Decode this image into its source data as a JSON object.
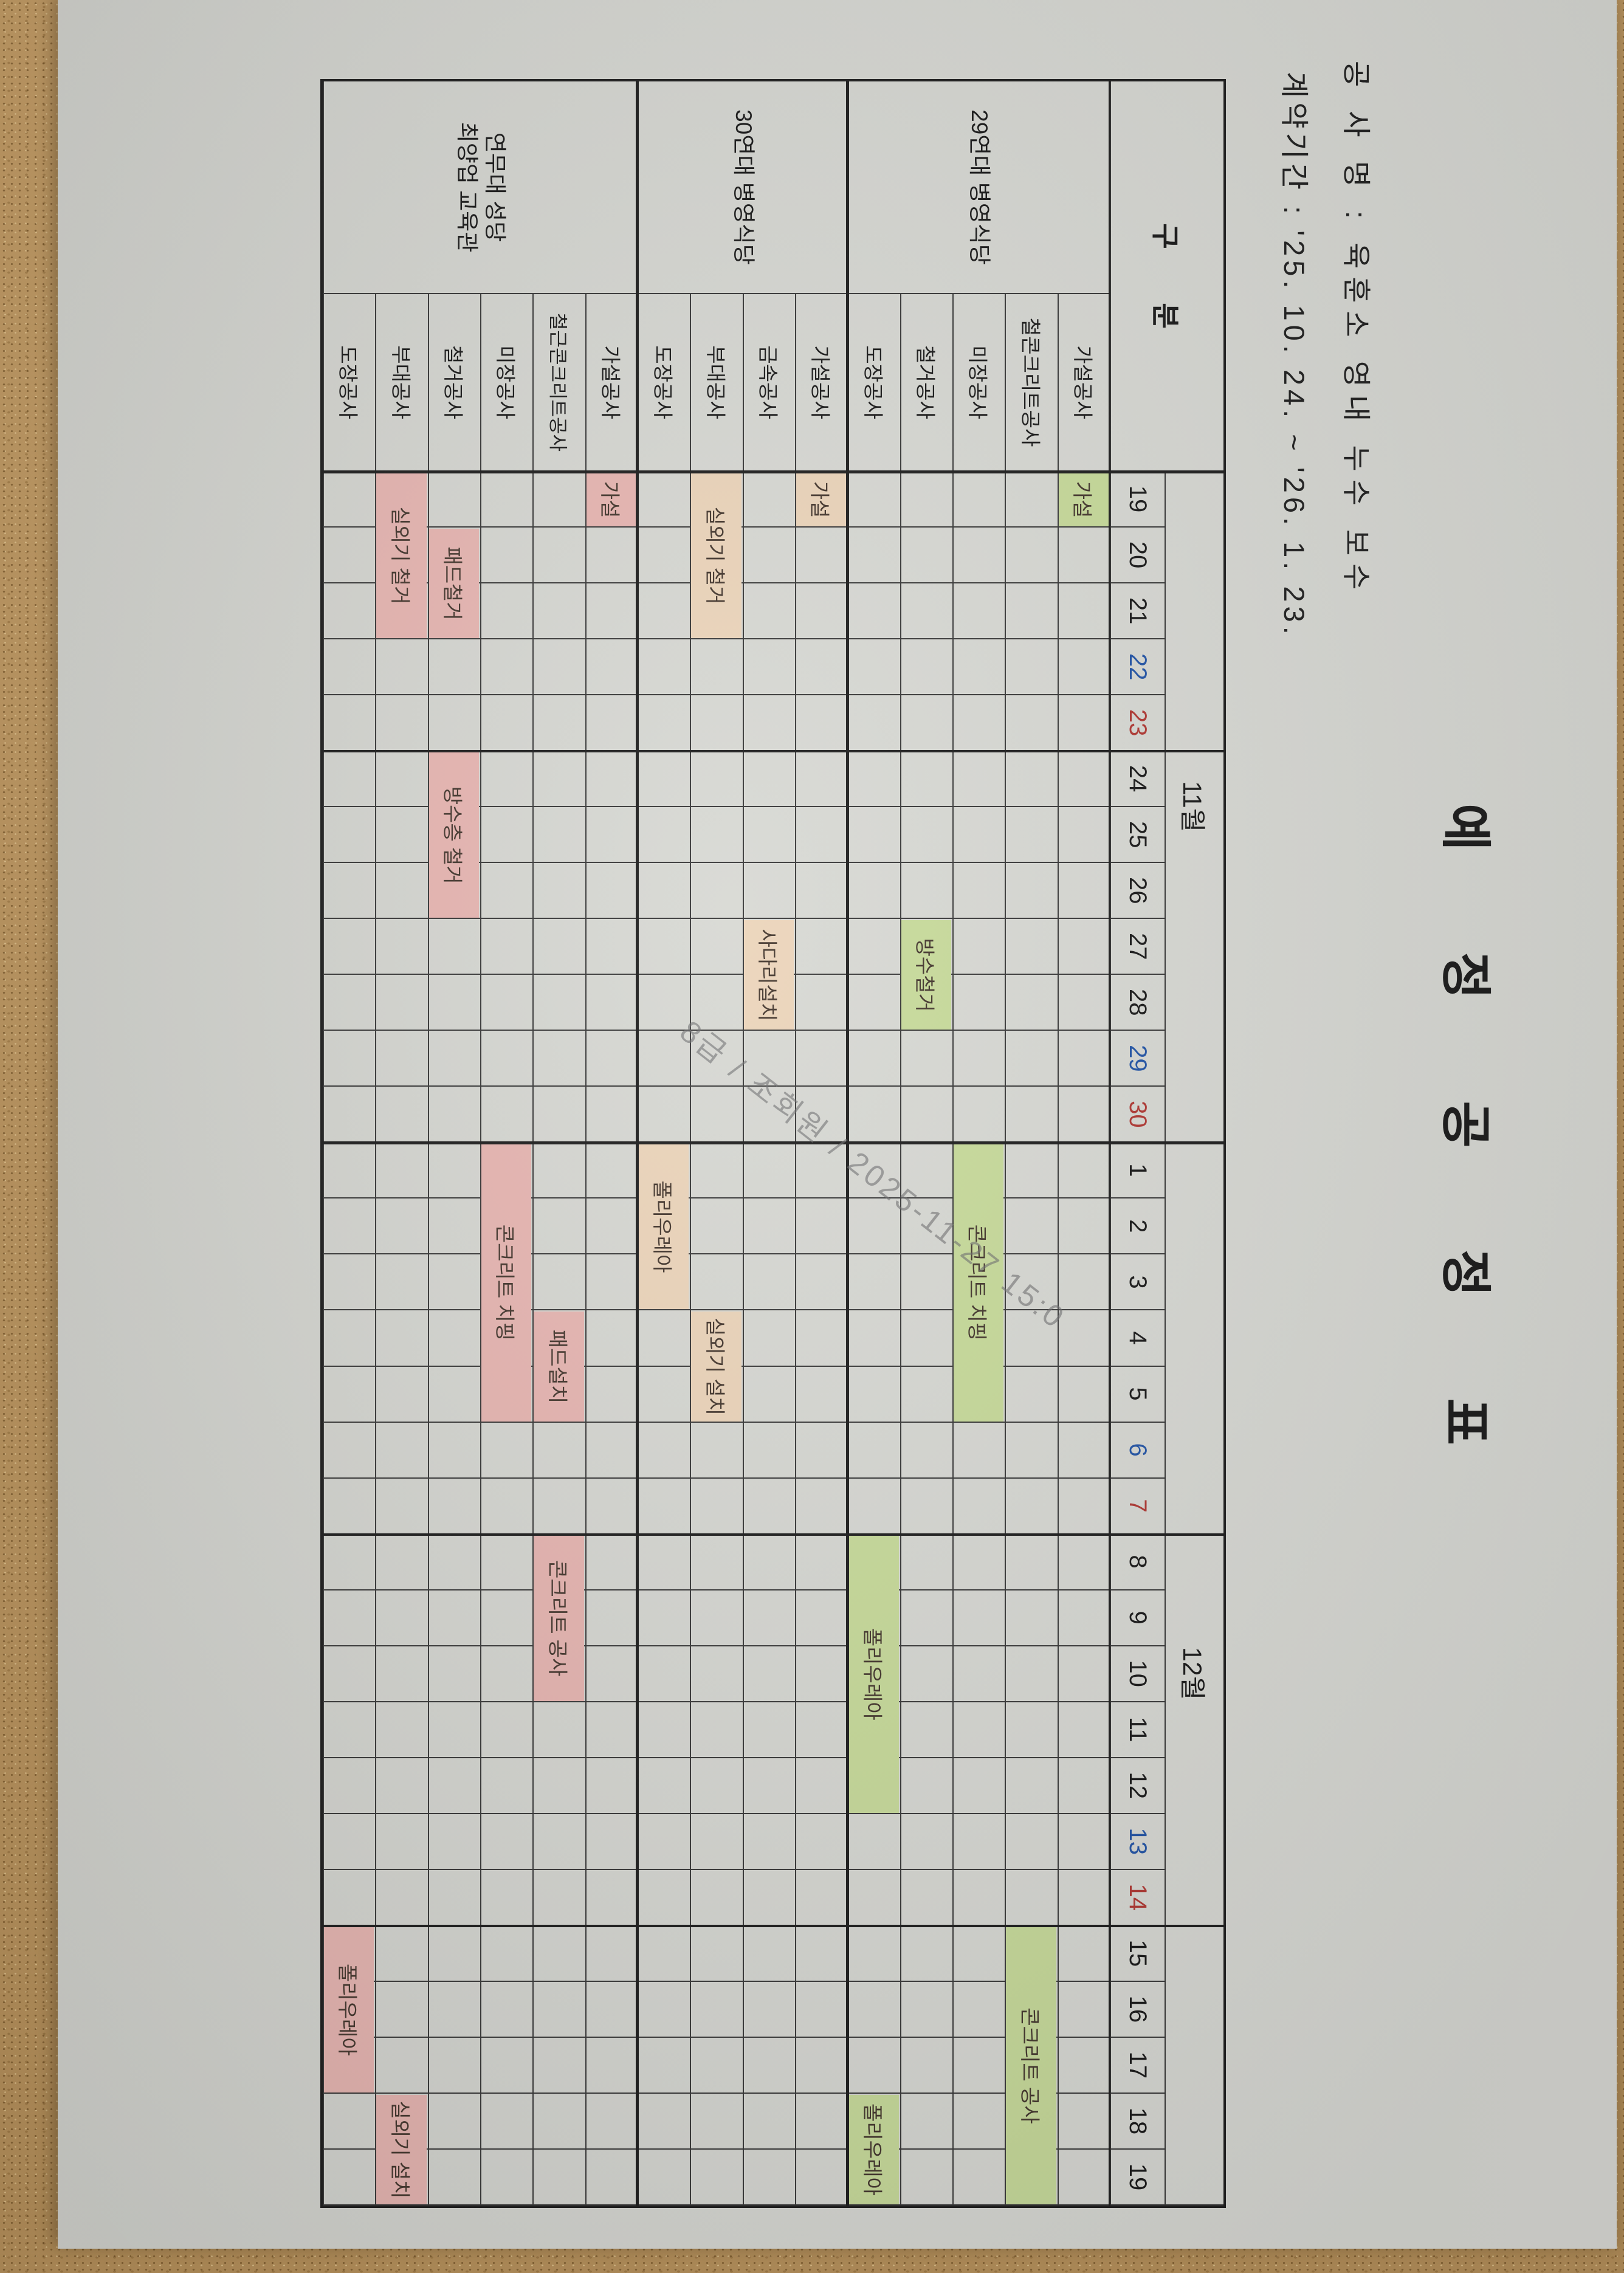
{
  "title": "예 정 공 정 표",
  "header": {
    "project_name_line": "공 사 명 : 육훈소 영내 누수 보수",
    "contract_period_line": "계약기간 : '25. 10. 24. ~ '26. 1. 23."
  },
  "watermark": {
    "text": "8급 / 조회원 / 2025-11-27 15:0"
  },
  "colors": {
    "paper": "#d8d9d4",
    "desk": "#bd9760"
  },
  "chart_data": {
    "type": "gantt-table",
    "corner_label": "구 분",
    "date_range": "2025-11-19 ~ 2025-12-19",
    "colors": {
      "green": "#c9dc9c",
      "tan": "#ecd5bb",
      "pink": "#e7b6b2",
      "saturday": "#2456a8",
      "sunday": "#b23a35",
      "bar_text": "#45382f"
    },
    "months": [
      {
        "label": "11월",
        "days": [
          19,
          20,
          21,
          22,
          23,
          24,
          25,
          26,
          27,
          28,
          29,
          30
        ],
        "saturdays": [
          22,
          29
        ],
        "sundays": [
          23,
          30
        ]
      },
      {
        "label": "12월",
        "days": [
          1,
          2,
          3,
          4,
          5,
          6,
          7,
          8,
          9,
          10,
          11,
          12,
          13,
          14,
          15,
          16,
          17,
          18,
          19
        ],
        "saturdays": [
          6,
          13
        ],
        "sundays": [
          7,
          14
        ]
      }
    ],
    "week_thick_after": [
      {
        "month": 11,
        "day": 23
      },
      {
        "month": 11,
        "day": 30
      },
      {
        "month": 12,
        "day": 7
      },
      {
        "month": 12,
        "day": 14
      }
    ],
    "sections": [
      {
        "name_lines": [
          "29연대 병영식당"
        ],
        "color": "green",
        "rows": [
          {
            "label": "가설공사",
            "bars": [
              {
                "label": "가설",
                "month": 11,
                "day": 19,
                "span": 1
              }
            ]
          },
          {
            "label": "철콘크리트공사",
            "bars": [
              {
                "label": "콘크리트 공사",
                "month": 12,
                "day": 15,
                "span": 5
              }
            ]
          },
          {
            "label": "미장공사",
            "bars": [
              {
                "label": "콘크리트 치핑",
                "month": 12,
                "day": 1,
                "span": 5
              }
            ]
          },
          {
            "label": "철거공사",
            "bars": [
              {
                "label": "방수철거",
                "month": 11,
                "day": 27,
                "span": 2
              }
            ]
          },
          {
            "label": "도장공사",
            "bars": [
              {
                "label": "폴리우레아",
                "month": 12,
                "day": 8,
                "span": 5
              },
              {
                "label": "폴리우레아",
                "month": 12,
                "day": 18,
                "span": 2
              }
            ]
          }
        ]
      },
      {
        "name_lines": [
          "30연대 병영식당"
        ],
        "color": "tan",
        "rows": [
          {
            "label": "가설공사",
            "bars": [
              {
                "label": "가설",
                "month": 11,
                "day": 19,
                "span": 1
              }
            ]
          },
          {
            "label": "금속공사",
            "bars": [
              {
                "label": "사다리설치",
                "month": 11,
                "day": 27,
                "span": 2
              }
            ]
          },
          {
            "label": "부대공사",
            "bars": [
              {
                "label": "실외기 철거",
                "month": 11,
                "day": 19,
                "span": 3
              },
              {
                "label": "실외기 설치",
                "month": 12,
                "day": 4,
                "span": 2
              }
            ]
          },
          {
            "label": "도장공사",
            "bars": [
              {
                "label": "폴리우레아",
                "month": 12,
                "day": 1,
                "span": 3
              }
            ]
          }
        ]
      },
      {
        "name_lines": [
          "연무대 성당",
          "최양업 교육관"
        ],
        "color": "pink",
        "rows": [
          {
            "label": "가설공사",
            "bars": [
              {
                "label": "가설",
                "month": 11,
                "day": 19,
                "span": 1
              }
            ]
          },
          {
            "label": "철근콘크리트공사",
            "bars": [
              {
                "label": "패드설치",
                "month": 12,
                "day": 4,
                "span": 2
              },
              {
                "label": "콘크리트 공사",
                "month": 12,
                "day": 8,
                "span": 3
              }
            ]
          },
          {
            "label": "미장공사",
            "bars": [
              {
                "label": "콘크리트 치핑",
                "month": 12,
                "day": 1,
                "span": 5
              }
            ]
          },
          {
            "label": "철거공사",
            "bars": [
              {
                "label": "패드철거",
                "month": 11,
                "day": 20,
                "span": 2
              },
              {
                "label": "방수층 철거",
                "month": 11,
                "day": 24,
                "span": 3
              }
            ]
          },
          {
            "label": "부대공사",
            "bars": [
              {
                "label": "실외기 철거",
                "month": 11,
                "day": 19,
                "span": 3
              },
              {
                "label": "실외기 설치",
                "month": 12,
                "day": 18,
                "span": 2
              }
            ]
          },
          {
            "label": "도장공사",
            "bars": [
              {
                "label": "폴리우레아",
                "month": 12,
                "day": 15,
                "span": 3
              }
            ]
          }
        ]
      }
    ]
  }
}
